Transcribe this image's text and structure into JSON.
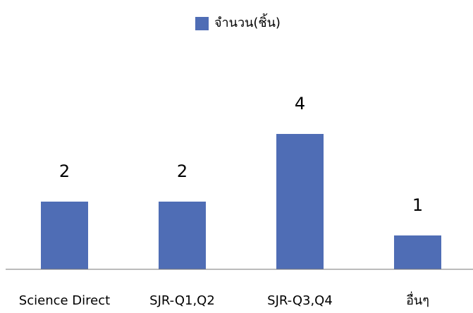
{
  "chart_data": {
    "type": "bar",
    "categories": [
      "Science Direct",
      "SJR-Q1,Q2",
      "SJR-Q3,Q4",
      "อื่นๆ"
    ],
    "series": [
      {
        "name": "จำนวน(ชิ้น)",
        "color": "#4f6db5",
        "values": [
          2,
          2,
          4,
          1
        ]
      }
    ],
    "ylim": [
      0,
      5
    ],
    "legend": "top"
  }
}
